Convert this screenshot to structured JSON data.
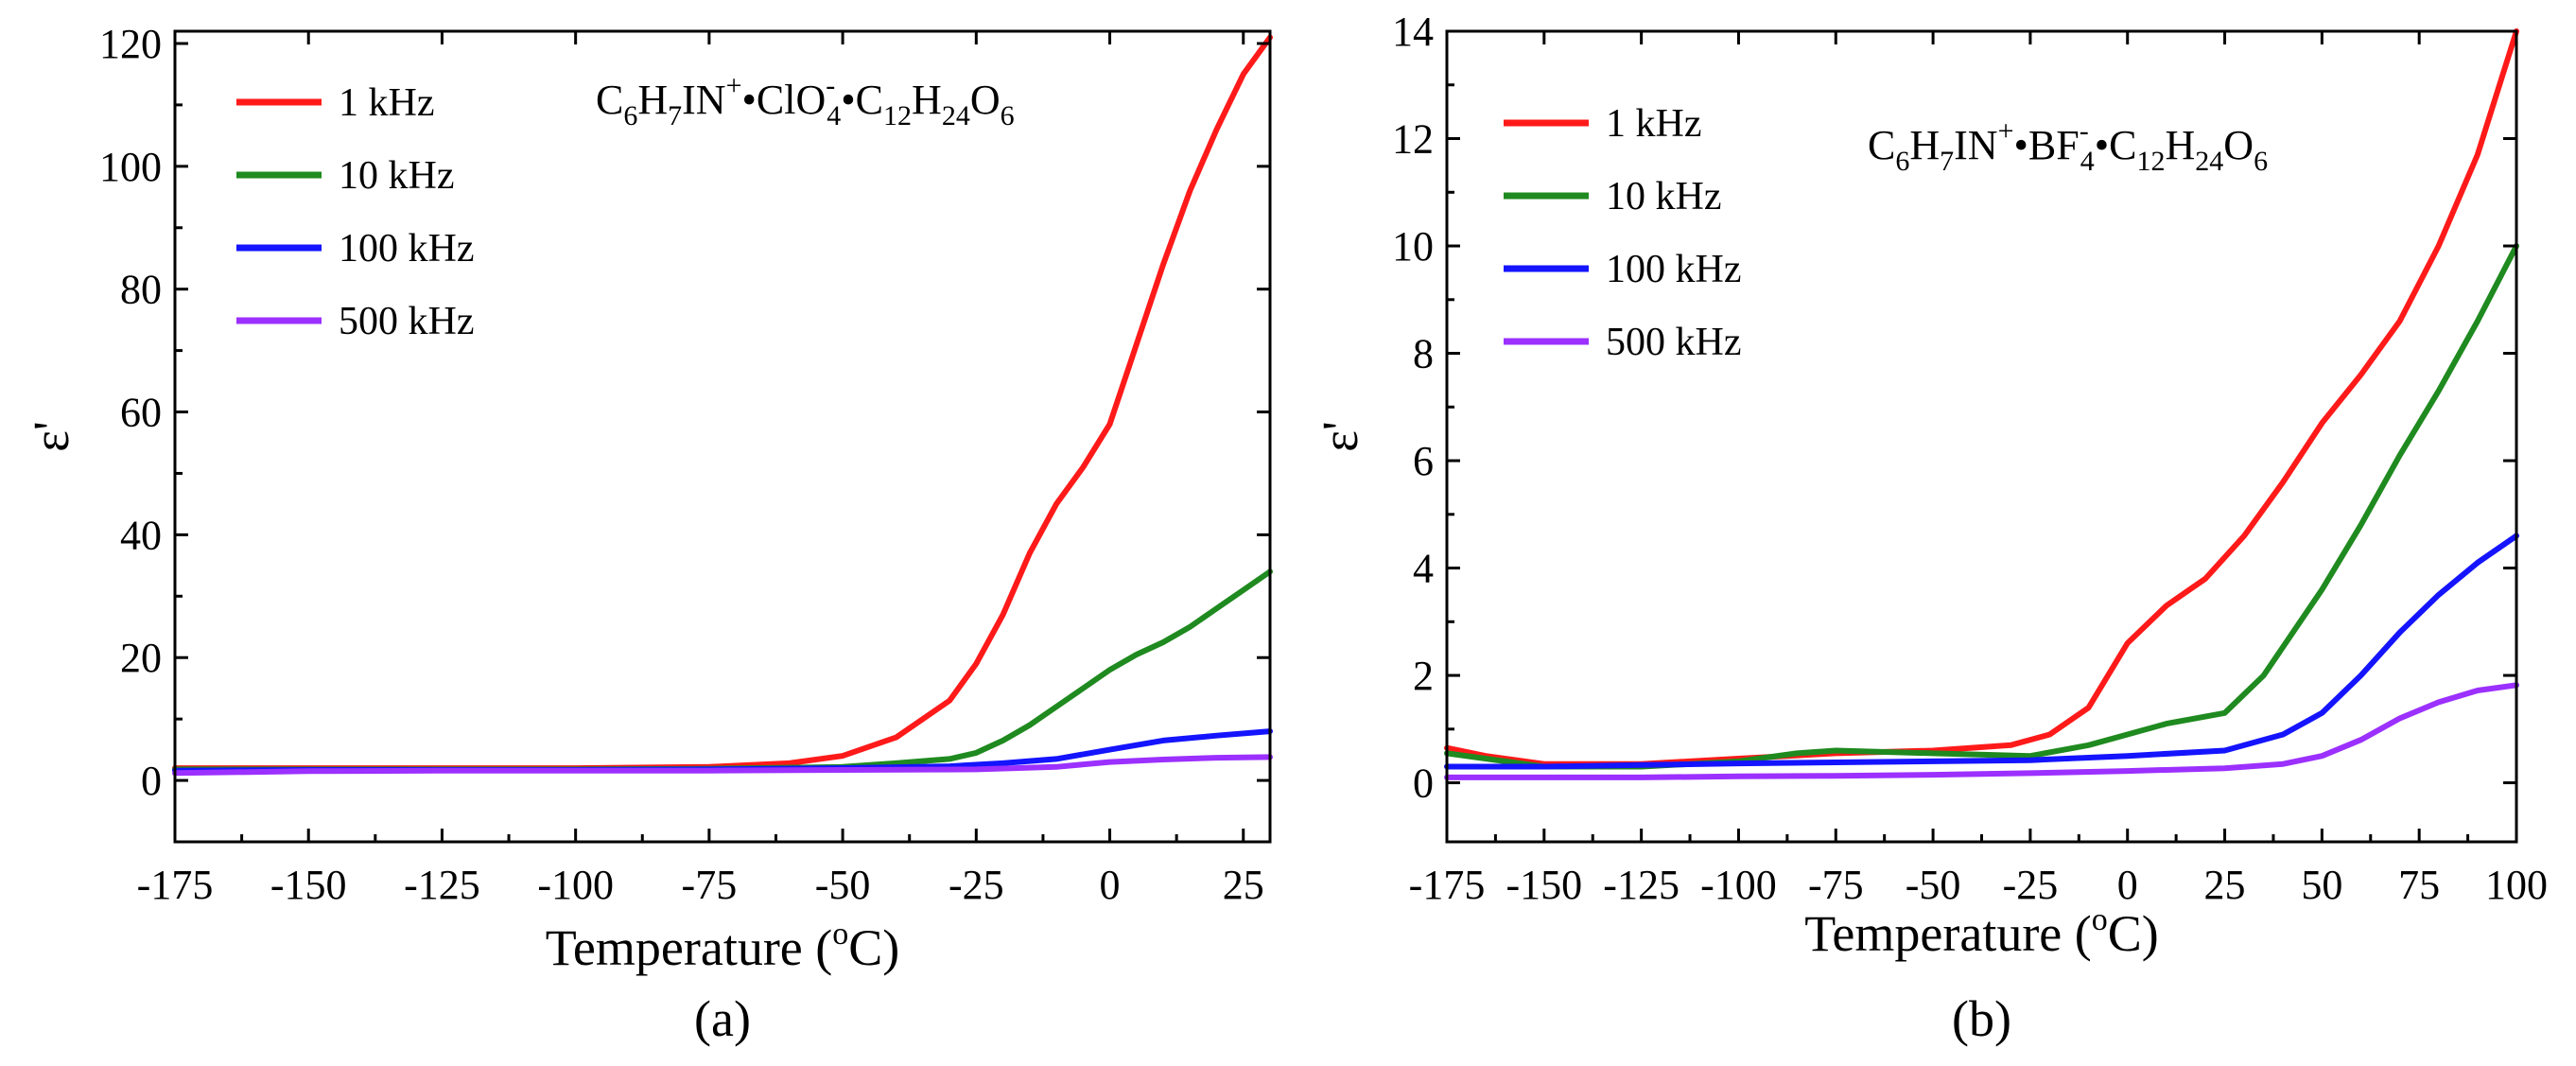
{
  "figure": {
    "colors": {
      "1 kHz": "#ff1a1a",
      "10 kHz": "#1f8a1f",
      "100 kHz": "#1414ff",
      "500 kHz": "#9b30ff"
    }
  },
  "chart_data": [
    {
      "type": "line",
      "caption": "(a)",
      "formula": {
        "parts": [
          {
            "t": "C"
          },
          {
            "t": "6",
            "s": "sub"
          },
          {
            "t": "H"
          },
          {
            "t": "7",
            "s": "sub"
          },
          {
            "t": "IN"
          },
          {
            "t": "+",
            "s": "sup"
          },
          {
            "t": "•ClO"
          },
          {
            "t": "-",
            "s": "sup"
          },
          {
            "t": "4",
            "s": "sub"
          },
          {
            "t": "•C"
          },
          {
            "t": "12",
            "s": "sub"
          },
          {
            "t": "H"
          },
          {
            "t": "24",
            "s": "sub"
          },
          {
            "t": "O"
          },
          {
            "t": "6",
            "s": "sub"
          }
        ]
      },
      "xlabel": "Temperature (",
      "xlabel_sup": "o",
      "xlabel_end": "C)",
      "ylabel": "ε'",
      "xlim": [
        -175,
        30
      ],
      "ylim": [
        -10,
        122
      ],
      "xticks": [
        -175,
        -150,
        -125,
        -100,
        -75,
        -50,
        -25,
        0,
        25
      ],
      "yticks": [
        0,
        20,
        40,
        60,
        80,
        100,
        120
      ],
      "legend_position": "top-left",
      "series": [
        {
          "name": "1 kHz",
          "points": [
            [
              -175,
              2
            ],
            [
              -150,
              2
            ],
            [
              -125,
              2
            ],
            [
              -100,
              2
            ],
            [
              -75,
              2.2
            ],
            [
              -60,
              2.8
            ],
            [
              -50,
              4
            ],
            [
              -40,
              7
            ],
            [
              -30,
              13
            ],
            [
              -25,
              19
            ],
            [
              -20,
              27
            ],
            [
              -15,
              37
            ],
            [
              -10,
              45
            ],
            [
              -5,
              51
            ],
            [
              0,
              58
            ],
            [
              5,
              71
            ],
            [
              10,
              84
            ],
            [
              15,
              96
            ],
            [
              20,
              106
            ],
            [
              25,
              115
            ],
            [
              30,
              121
            ]
          ]
        },
        {
          "name": "10 kHz",
          "points": [
            [
              -175,
              1.8
            ],
            [
              -150,
              1.8
            ],
            [
              -125,
              1.8
            ],
            [
              -100,
              1.8
            ],
            [
              -75,
              1.9
            ],
            [
              -50,
              2.2
            ],
            [
              -40,
              2.8
            ],
            [
              -30,
              3.5
            ],
            [
              -25,
              4.5
            ],
            [
              -20,
              6.5
            ],
            [
              -15,
              9
            ],
            [
              -10,
              12
            ],
            [
              -5,
              15
            ],
            [
              0,
              18
            ],
            [
              5,
              20.5
            ],
            [
              10,
              22.5
            ],
            [
              15,
              25
            ],
            [
              20,
              28
            ],
            [
              25,
              31
            ],
            [
              30,
              34
            ]
          ]
        },
        {
          "name": "100 kHz",
          "points": [
            [
              -175,
              1.6
            ],
            [
              -150,
              1.7
            ],
            [
              -125,
              1.7
            ],
            [
              -100,
              1.7
            ],
            [
              -75,
              1.8
            ],
            [
              -50,
              2
            ],
            [
              -30,
              2.3
            ],
            [
              -20,
              2.8
            ],
            [
              -10,
              3.5
            ],
            [
              0,
              5
            ],
            [
              10,
              6.5
            ],
            [
              20,
              7.3
            ],
            [
              30,
              8
            ]
          ]
        },
        {
          "name": "500 kHz",
          "points": [
            [
              -175,
              1.2
            ],
            [
              -150,
              1.5
            ],
            [
              -125,
              1.6
            ],
            [
              -100,
              1.6
            ],
            [
              -75,
              1.6
            ],
            [
              -50,
              1.7
            ],
            [
              -25,
              1.8
            ],
            [
              -10,
              2.2
            ],
            [
              0,
              3
            ],
            [
              10,
              3.4
            ],
            [
              20,
              3.7
            ],
            [
              30,
              3.8
            ]
          ]
        }
      ]
    },
    {
      "type": "line",
      "caption": "(b)",
      "formula": {
        "parts": [
          {
            "t": "C"
          },
          {
            "t": "6",
            "s": "sub"
          },
          {
            "t": "H"
          },
          {
            "t": "7",
            "s": "sub"
          },
          {
            "t": "IN"
          },
          {
            "t": "+",
            "s": "sup"
          },
          {
            "t": "•BF"
          },
          {
            "t": "-",
            "s": "sup"
          },
          {
            "t": "4",
            "s": "sub"
          },
          {
            "t": "•C"
          },
          {
            "t": "12",
            "s": "sub"
          },
          {
            "t": "H"
          },
          {
            "t": "24",
            "s": "sub"
          },
          {
            "t": "O"
          },
          {
            "t": "6",
            "s": "sub"
          }
        ]
      },
      "xlabel": "Temperature (",
      "xlabel_sup": "o",
      "xlabel_end": "C)",
      "ylabel": "ε'",
      "xlim": [
        -175,
        100
      ],
      "ylim": [
        -1.1,
        14
      ],
      "xticks": [
        -175,
        -150,
        -125,
        -100,
        -75,
        -50,
        -25,
        0,
        25,
        50,
        75,
        100
      ],
      "yticks": [
        0,
        2,
        4,
        6,
        8,
        10,
        12,
        14
      ],
      "legend_position": "top-left",
      "series": [
        {
          "name": "1 kHz",
          "points": [
            [
              -175,
              0.65
            ],
            [
              -165,
              0.5
            ],
            [
              -150,
              0.35
            ],
            [
              -125,
              0.35
            ],
            [
              -100,
              0.45
            ],
            [
              -75,
              0.55
            ],
            [
              -50,
              0.6
            ],
            [
              -30,
              0.7
            ],
            [
              -20,
              0.9
            ],
            [
              -10,
              1.4
            ],
            [
              0,
              2.6
            ],
            [
              10,
              3.3
            ],
            [
              20,
              3.8
            ],
            [
              30,
              4.6
            ],
            [
              40,
              5.6
            ],
            [
              50,
              6.7
            ],
            [
              60,
              7.6
            ],
            [
              70,
              8.6
            ],
            [
              80,
              10
            ],
            [
              90,
              11.7
            ],
            [
              100,
              14
            ]
          ]
        },
        {
          "name": "10 kHz",
          "points": [
            [
              -175,
              0.55
            ],
            [
              -160,
              0.4
            ],
            [
              -150,
              0.3
            ],
            [
              -125,
              0.3
            ],
            [
              -100,
              0.4
            ],
            [
              -85,
              0.55
            ],
            [
              -75,
              0.6
            ],
            [
              -50,
              0.55
            ],
            [
              -25,
              0.5
            ],
            [
              -10,
              0.7
            ],
            [
              0,
              0.9
            ],
            [
              10,
              1.1
            ],
            [
              25,
              1.3
            ],
            [
              35,
              2
            ],
            [
              50,
              3.6
            ],
            [
              60,
              4.8
            ],
            [
              70,
              6.1
            ],
            [
              80,
              7.3
            ],
            [
              90,
              8.6
            ],
            [
              100,
              10
            ]
          ]
        },
        {
          "name": "100 kHz",
          "points": [
            [
              -175,
              0.3
            ],
            [
              -150,
              0.3
            ],
            [
              -125,
              0.33
            ],
            [
              -100,
              0.36
            ],
            [
              -75,
              0.38
            ],
            [
              -50,
              0.4
            ],
            [
              -25,
              0.42
            ],
            [
              0,
              0.5
            ],
            [
              25,
              0.6
            ],
            [
              40,
              0.9
            ],
            [
              50,
              1.3
            ],
            [
              60,
              2
            ],
            [
              70,
              2.8
            ],
            [
              80,
              3.5
            ],
            [
              90,
              4.1
            ],
            [
              100,
              4.6
            ]
          ]
        },
        {
          "name": "500 kHz",
          "points": [
            [
              -175,
              0.1
            ],
            [
              -150,
              0.1
            ],
            [
              -125,
              0.1
            ],
            [
              -100,
              0.12
            ],
            [
              -75,
              0.13
            ],
            [
              -50,
              0.15
            ],
            [
              -25,
              0.18
            ],
            [
              0,
              0.22
            ],
            [
              25,
              0.27
            ],
            [
              40,
              0.35
            ],
            [
              50,
              0.5
            ],
            [
              60,
              0.8
            ],
            [
              70,
              1.2
            ],
            [
              80,
              1.5
            ],
            [
              90,
              1.72
            ],
            [
              100,
              1.82
            ]
          ]
        }
      ]
    }
  ]
}
